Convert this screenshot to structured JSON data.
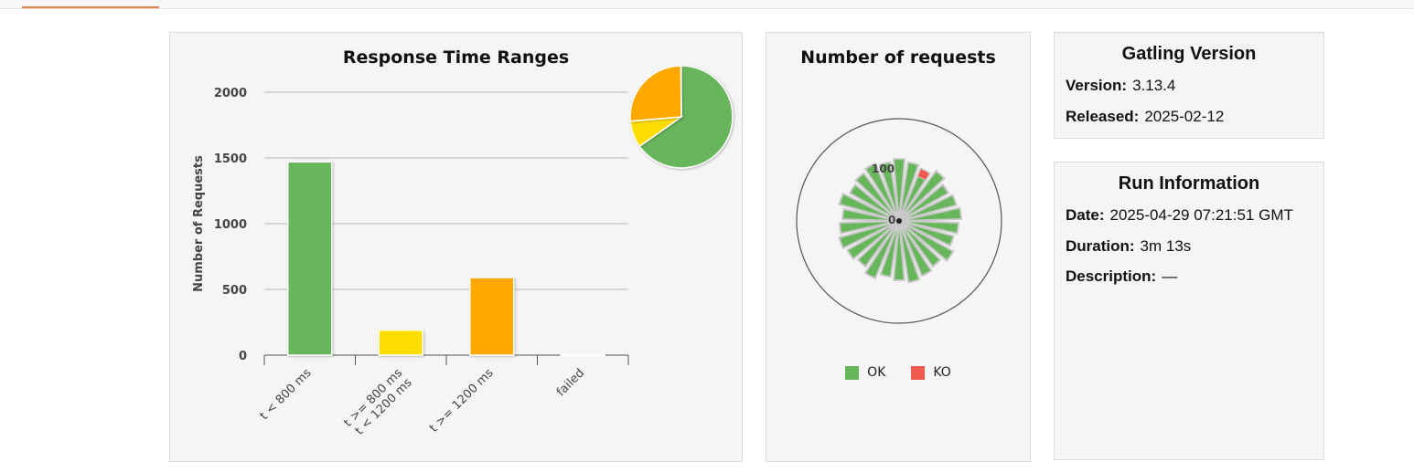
{
  "colors": {
    "ok": "#68b65c",
    "ok_mid": "#ffdd00",
    "ok_slow": "#ffa900",
    "ko": "#f15b4f",
    "accent": "#e8804f"
  },
  "response_time_ranges": {
    "title": "Response Time Ranges",
    "chart_data": {
      "type": "bar",
      "title": "Response Time Ranges",
      "ylabel": "Number of Requests",
      "ylim": [
        0,
        2000
      ],
      "yticks": [
        0,
        500,
        1000,
        1500,
        2000
      ],
      "categories": [
        [
          "t < 800 ms"
        ],
        [
          "t >= 800 ms",
          "t < 1200 ms"
        ],
        [
          "t >= 1200 ms"
        ],
        [
          "failed"
        ]
      ],
      "values": [
        1470,
        190,
        590,
        4
      ],
      "colors": [
        "#68b65c",
        "#ffdd00",
        "#ffa900",
        "#f15b4f"
      ],
      "pie": {
        "type": "pie",
        "values": [
          1470,
          190,
          590,
          4
        ]
      }
    }
  },
  "number_of_requests": {
    "title": "Number of requests",
    "chart_data": {
      "type": "polar-bar",
      "title": "Number of requests",
      "radial_ticks": [
        "0",
        "100"
      ],
      "spokes": 26,
      "ko_spoke_index": 2,
      "legend": [
        "OK",
        "KO"
      ]
    },
    "legend": {
      "ok": "OK",
      "ko": "KO"
    }
  },
  "gatling_version": {
    "title": "Gatling Version",
    "version_label": "Version:",
    "version_value": "3.13.4",
    "released_label": "Released:",
    "released_value": "2025-02-12"
  },
  "run_information": {
    "title": "Run Information",
    "date_label": "Date:",
    "date_value": "2025-04-29 07:21:51 GMT",
    "duration_label": "Duration:",
    "duration_value": "3m 13s",
    "description_label": "Description:",
    "description_value": "—"
  }
}
